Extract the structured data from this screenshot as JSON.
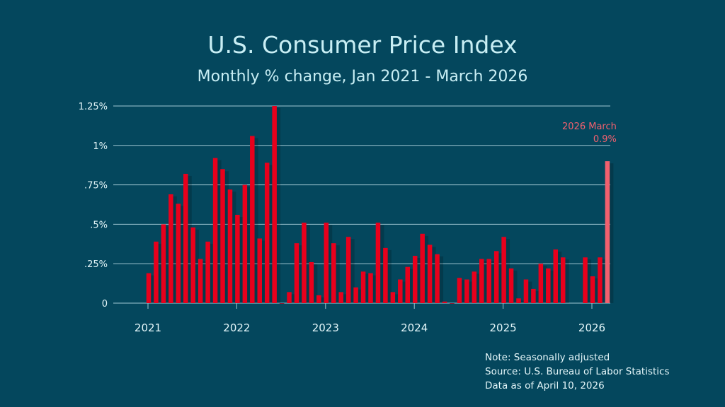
{
  "chart_data": {
    "type": "bar",
    "title": "U.S. Consumer Price Index",
    "subtitle": "Monthly % change, Jan 2021 - March 2026",
    "xlabel": "",
    "ylabel": "",
    "ylim": [
      0,
      1.25
    ],
    "yticks": [
      0,
      0.25,
      0.5,
      0.75,
      1,
      1.25
    ],
    "ytick_labels": [
      "0",
      ".25%",
      ".5%",
      ".75%",
      "1%",
      "1.25%"
    ],
    "xtick_labels": [
      "2021",
      "2022",
      "2023",
      "2024",
      "2025",
      "2026"
    ],
    "grid": true,
    "start": "2021-01",
    "values": [
      0.19,
      0.39,
      0.5,
      0.69,
      0.63,
      0.82,
      0.48,
      0.28,
      0.39,
      0.92,
      0.85,
      0.72,
      0.56,
      0.75,
      1.06,
      0.41,
      0.89,
      1.25,
      0.0,
      0.07,
      0.38,
      0.51,
      0.26,
      0.05,
      0.51,
      0.38,
      0.07,
      0.42,
      0.1,
      0.2,
      0.19,
      0.51,
      0.35,
      0.07,
      0.15,
      0.23,
      0.3,
      0.44,
      0.37,
      0.31,
      0.01,
      0.0,
      0.16,
      0.15,
      0.2,
      0.28,
      0.28,
      0.33,
      0.42,
      0.22,
      0.03,
      0.15,
      0.09,
      0.25,
      0.22,
      0.34,
      0.29,
      null,
      null,
      0.29,
      0.17,
      0.29,
      0.9
    ],
    "highlight": {
      "label": "2026 March",
      "value_label": "0.9%",
      "value": 0.9,
      "color": "#f2606e"
    },
    "bar_color": "#e8001c"
  },
  "notes": [
    "Note: Seasonally adjusted",
    "Source: U.S.  Bureau of Labor Statistics",
    "Data as of April 10, 2026"
  ],
  "colors": {
    "background": "#04475d",
    "grid": "#9fc7d2",
    "text": "#c8eef4"
  }
}
